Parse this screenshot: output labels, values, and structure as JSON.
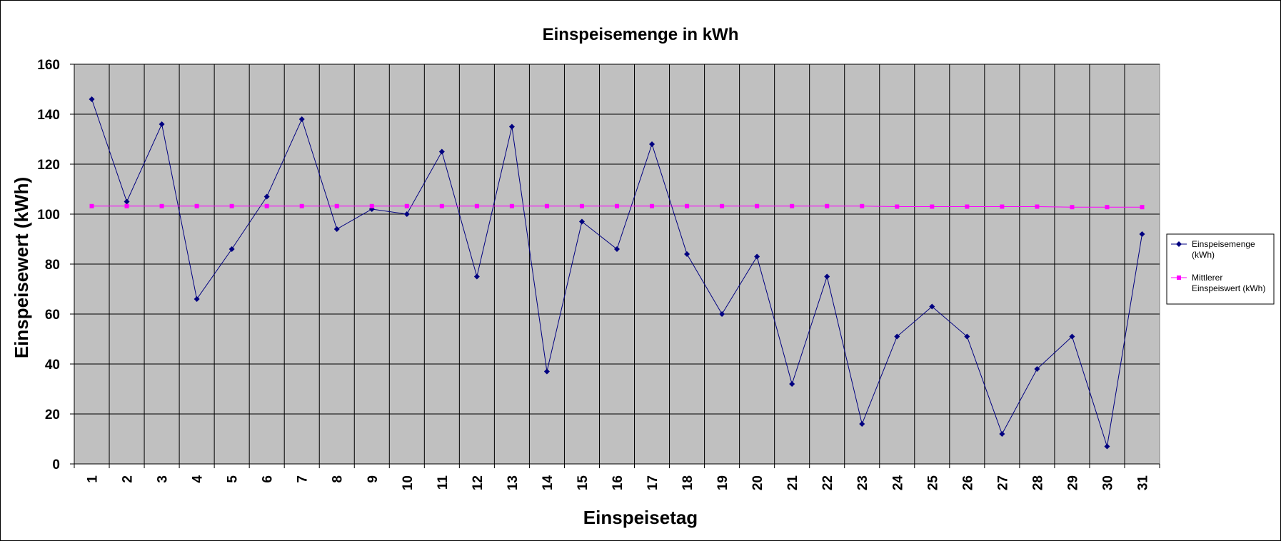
{
  "chart_data": {
    "type": "line",
    "title": "Einspeisemenge in kWh",
    "xlabel": "Einspeisetag",
    "ylabel": "Einspeisewert  (kWh)",
    "ylim": [
      0,
      160
    ],
    "yticks": [
      0,
      20,
      40,
      60,
      80,
      100,
      120,
      140,
      160
    ],
    "categories": [
      "1",
      "2",
      "3",
      "4",
      "5",
      "6",
      "7",
      "8",
      "9",
      "10",
      "11",
      "12",
      "13",
      "14",
      "15",
      "16",
      "17",
      "18",
      "19",
      "20",
      "21",
      "22",
      "23",
      "24",
      "25",
      "26",
      "27",
      "28",
      "29",
      "30",
      "31"
    ],
    "grid": true,
    "plot_background": "#c0c0c0",
    "legend_position": "right",
    "series": [
      {
        "name": "Einspeisemenge (kWh)",
        "legend_lines": [
          "Einspeisemenge",
          "(kWh)"
        ],
        "color": "#000080",
        "marker": "diamond",
        "values": [
          146,
          105,
          136,
          66,
          86,
          107,
          138,
          94,
          102,
          100,
          125,
          75,
          135,
          37,
          97,
          86,
          128,
          84,
          60,
          83,
          32,
          75,
          16,
          51,
          63,
          51,
          12,
          38,
          51,
          7,
          92
        ]
      },
      {
        "name": "Mittlerer Einspeiswert (kWh)",
        "legend_lines": [
          "Mittlerer",
          "Einspeiswert (kWh)"
        ],
        "color": "#ff00ff",
        "marker": "square",
        "values": [
          103.2,
          103.2,
          103.2,
          103.2,
          103.2,
          103.2,
          103.2,
          103.2,
          103.2,
          103.2,
          103.2,
          103.2,
          103.2,
          103.2,
          103.2,
          103.2,
          103.2,
          103.2,
          103.2,
          103.2,
          103.2,
          103.2,
          103.2,
          103,
          103,
          103,
          103,
          103,
          102.8,
          102.8,
          102.8
        ]
      }
    ]
  }
}
